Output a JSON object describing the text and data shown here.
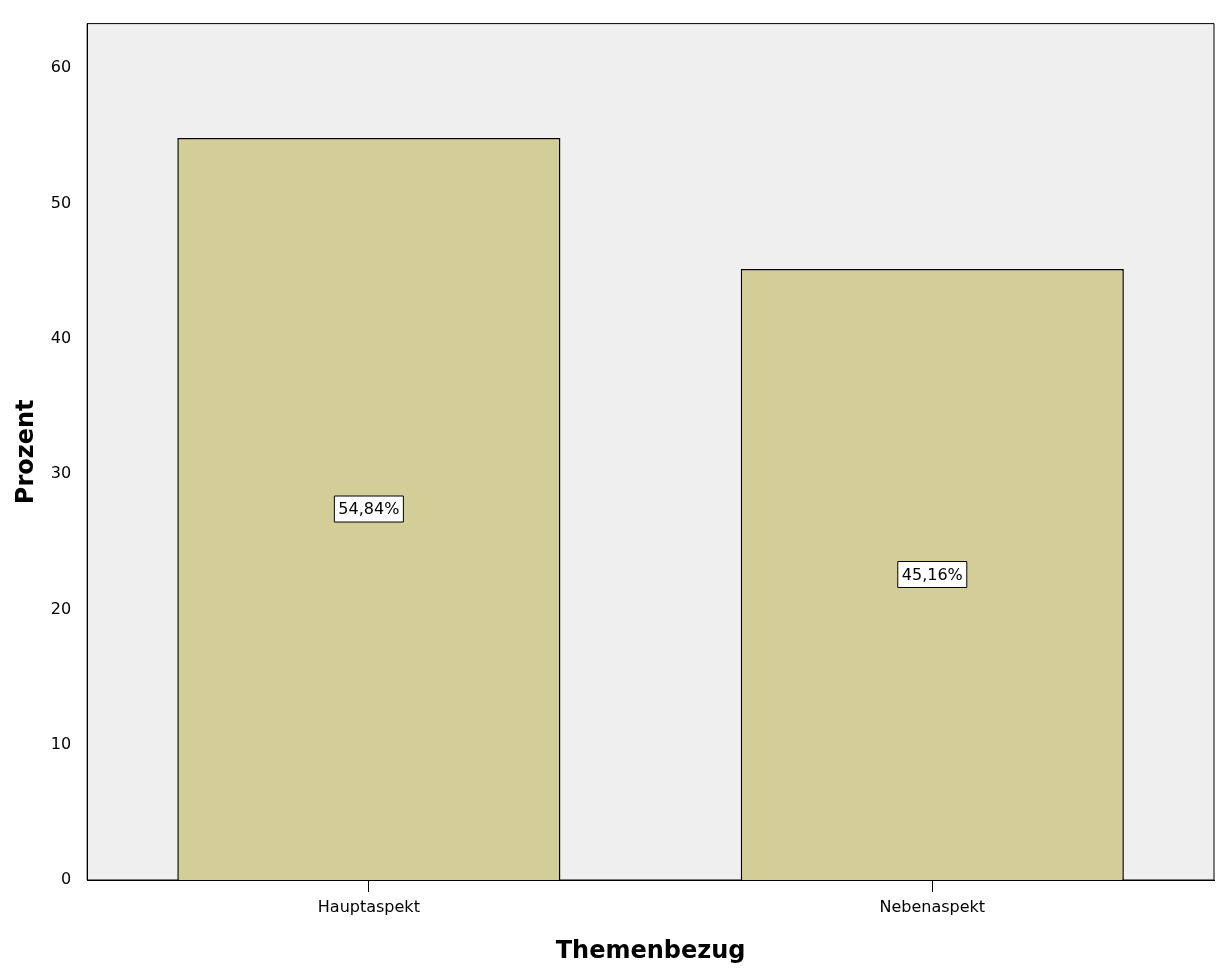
{
  "chart_data": {
    "type": "bar",
    "xlabel": "Themenbezug",
    "ylabel": "Prozent",
    "categories": [
      "Hauptaspekt",
      "Nebenaspekt"
    ],
    "values": [
      54.84,
      45.16
    ],
    "value_labels": [
      "54,84%",
      "45,16%"
    ],
    "color": "#d3ce98",
    "ylim": [
      0,
      63.3
    ],
    "yticks": [
      0,
      10,
      20,
      30,
      40,
      50,
      60
    ],
    "grid": false,
    "legend": false
  }
}
